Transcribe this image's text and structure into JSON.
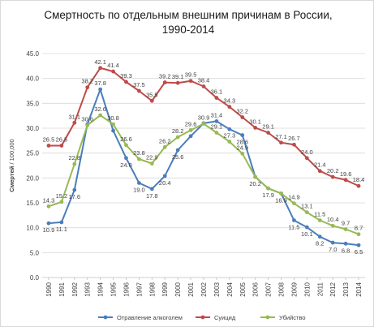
{
  "chart_data": {
    "type": "line",
    "title_lines": [
      "Смертность по отдельным внешним причинам в России,",
      "1990-2014"
    ],
    "ylabel_prefix": "Смертей",
    "ylabel_suffix": " / 100,000",
    "ylim": [
      0,
      45
    ],
    "ytick_step": 5,
    "yticks": [
      "0.0",
      "5.0",
      "10.0",
      "15.0",
      "20.0",
      "25.0",
      "30.0",
      "35.0",
      "40.0",
      "45.0"
    ],
    "grid": true,
    "legend_position": "bottom",
    "x": [
      "1990",
      "1991",
      "1992",
      "1993",
      "1994",
      "1995",
      "1996",
      "1997",
      "1998",
      "1999",
      "2000",
      "2001",
      "2002",
      "2003",
      "2004",
      "2005",
      "2006",
      "2007",
      "2008",
      "2009",
      "2010",
      "2011",
      "2012",
      "2013",
      "2014"
    ],
    "series": [
      {
        "name": "Отравление алкоголем",
        "color": "#4a7ebb",
        "values": [
          10.9,
          11.1,
          17.6,
          30.8,
          37.8,
          29.5,
          24.0,
          19.0,
          17.8,
          20.4,
          25.6,
          28.4,
          31.0,
          31.4,
          29.8,
          28.6,
          20.2,
          17.9,
          16.9,
          11.5,
          10.1,
          8.2,
          7.0,
          6.8,
          6.5
        ],
        "labels": [
          "10.9",
          "11.1",
          "17.6",
          "",
          "37.8",
          "",
          "24.0",
          "19.0",
          "17.8",
          "20.4",
          "25.6",
          "",
          "",
          "31.4",
          "",
          "28.6",
          "20.2",
          "17.9",
          "16.9",
          "11.5",
          "10.1",
          "8.2",
          "7.0",
          "6.8",
          "6.5"
        ]
      },
      {
        "name": "Суицид",
        "color": "#be4b48",
        "values": [
          26.5,
          26.5,
          31.1,
          38.2,
          42.1,
          41.4,
          39.3,
          37.5,
          35.5,
          39.2,
          39.1,
          39.5,
          38.4,
          36.1,
          34.3,
          32.2,
          30.1,
          29.1,
          27.1,
          26.7,
          24.0,
          21.4,
          20.2,
          19.6,
          18.4
        ],
        "labels": [
          "26.5",
          "26.5",
          "31.1",
          "38.2",
          "42.1",
          "41.4",
          "39.3",
          "37.5",
          "35.5",
          "39.2",
          "39.1",
          "39.5",
          "38.4",
          "36.1",
          "34.3",
          "32.2",
          "30.1",
          "29.1",
          "27.1",
          "26.7",
          "24.0",
          "21.4",
          "20.2",
          "19.6",
          "18.4"
        ]
      },
      {
        "name": "Убийство",
        "color": "#98b954",
        "values": [
          14.3,
          15.2,
          22.8,
          30.6,
          32.6,
          30.8,
          26.6,
          23.8,
          22.9,
          26.2,
          28.2,
          29.6,
          30.9,
          29.1,
          27.3,
          24.9,
          20.2,
          17.9,
          16.9,
          14.9,
          13.1,
          11.5,
          10.4,
          9.7,
          8.7
        ],
        "labels": [
          "14.3",
          "15.2",
          "22.8",
          "30.6",
          "32.6",
          "30.8",
          "26.6",
          "23.8",
          "22.9",
          "26.2",
          "28.2",
          "29.6",
          "30.9",
          "29.1",
          "27.3",
          "24.9",
          "",
          "",
          "",
          "14.9",
          "13.1",
          "11.5",
          "10.4",
          "9.7",
          "8.7"
        ]
      }
    ]
  }
}
